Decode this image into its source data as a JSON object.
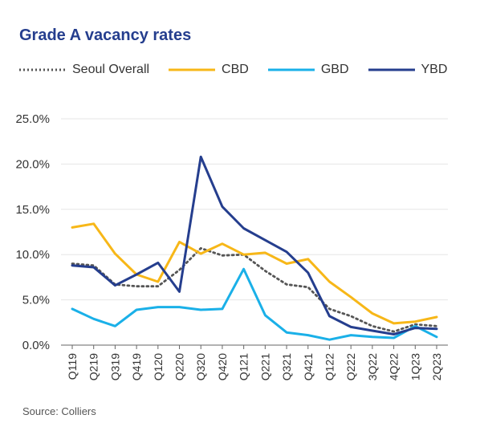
{
  "title": "Grade A vacancy rates",
  "source": "Source: Colliers",
  "legend": [
    {
      "name": "Seoul Overall",
      "color": "#555555",
      "style": "dotted"
    },
    {
      "name": "CBD",
      "color": "#f7b718",
      "style": "solid"
    },
    {
      "name": "GBD",
      "color": "#1ab0e8",
      "style": "solid"
    },
    {
      "name": "YBD",
      "color": "#253e8e",
      "style": "solid"
    }
  ],
  "chart_data": {
    "type": "line",
    "title": "Grade A vacancy rates",
    "xlabel": "",
    "ylabel": "",
    "ylim": [
      0,
      25
    ],
    "y_ticks": [
      "0.0%",
      "5.0%",
      "10.0%",
      "15.0%",
      "20.0%",
      "25.0%"
    ],
    "grid": "horizontal",
    "legend_position": "top",
    "categories": [
      "Q119",
      "Q219",
      "Q319",
      "Q419",
      "Q120",
      "Q220",
      "Q320",
      "Q420",
      "Q121",
      "Q221",
      "Q321",
      "Q421",
      "Q122",
      "Q222",
      "3Q22",
      "4Q22",
      "1Q23",
      "2Q23"
    ],
    "series": [
      {
        "name": "Seoul Overall",
        "color": "#555555",
        "style": "dotted",
        "values": [
          9.0,
          8.8,
          6.7,
          6.5,
          6.5,
          8.3,
          10.7,
          9.9,
          10.0,
          8.2,
          6.7,
          6.4,
          4.0,
          3.2,
          2.1,
          1.5,
          2.3,
          2.1
        ]
      },
      {
        "name": "CBD",
        "color": "#f7b718",
        "style": "solid",
        "values": [
          13.0,
          13.4,
          10.1,
          7.8,
          7.0,
          11.4,
          10.1,
          11.2,
          10.0,
          10.2,
          9.0,
          9.5,
          7.0,
          5.3,
          3.5,
          2.4,
          2.6,
          3.1
        ]
      },
      {
        "name": "GBD",
        "color": "#1ab0e8",
        "style": "solid",
        "values": [
          4.0,
          2.9,
          2.1,
          3.9,
          4.2,
          4.2,
          3.9,
          4.0,
          8.4,
          3.3,
          1.4,
          1.1,
          0.6,
          1.1,
          0.9,
          0.8,
          2.1,
          0.9
        ]
      },
      {
        "name": "YBD",
        "color": "#253e8e",
        "style": "solid",
        "values": [
          8.8,
          8.6,
          6.6,
          7.8,
          9.1,
          5.9,
          20.8,
          15.3,
          12.9,
          11.6,
          10.3,
          8.0,
          3.2,
          2.0,
          1.6,
          1.2,
          1.9,
          1.8
        ]
      }
    ]
  }
}
